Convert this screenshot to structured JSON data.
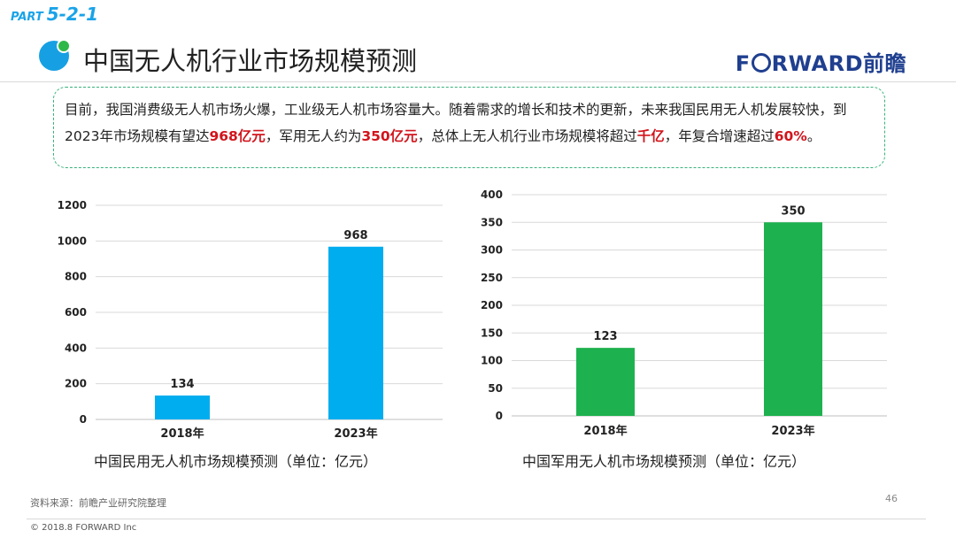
{
  "header": {
    "part_prefix": "PART",
    "part_number": "5-2-1",
    "title": "中国无人机行业市场规模预测",
    "brand": {
      "f": "F",
      "rest": "RWARD前瞻"
    }
  },
  "intro": {
    "t1": "目前，我国消费级无人机市场火爆，工业级无人机市场容量大。随着需求的增长和技术的更新，未来我国民用无人机发展较快，到2023年市场规模有望达",
    "h1": "968亿元",
    "t2": "，军用无人约为",
    "h2": "350亿元",
    "t3": "，总体上无人机行业市场规模将超过",
    "h3": "千亿",
    "t4": "，年复合增速超过",
    "h4": "60%",
    "t5": "。"
  },
  "colors": {
    "civil": "#00adef",
    "military": "#1eb14f",
    "accent": "#1aa3e8",
    "highlight": "#d2141c",
    "brand": "#1f3f8f"
  },
  "chart_data": [
    {
      "type": "bar",
      "title": "中国民用无人机市场规模预测（单位：亿元）",
      "categories": [
        "2018年",
        "2023年"
      ],
      "values": [
        134,
        968
      ],
      "ylim": [
        0,
        1200
      ],
      "yticks": [
        "0",
        "200",
        "400",
        "600",
        "800",
        "1000",
        "1200"
      ],
      "grid": true,
      "color": "#00adef"
    },
    {
      "type": "bar",
      "title": "中国军用无人机市场规模预测（单位：亿元）",
      "categories": [
        "2018年",
        "2023年"
      ],
      "values": [
        123,
        350
      ],
      "ylim": [
        0,
        400
      ],
      "yticks": [
        "0",
        "50",
        "100",
        "150",
        "200",
        "250",
        "300",
        "350",
        "400"
      ],
      "grid": true,
      "color": "#1eb14f"
    }
  ],
  "footer": {
    "source": "资料来源：前瞻产业研究院整理",
    "page": "46",
    "copyright": "© 2018.8 FORWARD Inc"
  }
}
